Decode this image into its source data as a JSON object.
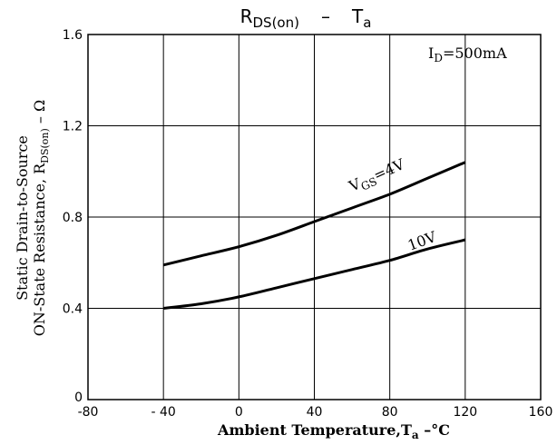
{
  "chart_data": {
    "type": "line",
    "title": {
      "main": "R",
      "sub": "DS(on)",
      "sep": "–",
      "right": "T",
      "right_sub": "a"
    },
    "condition": {
      "prefix": "I",
      "sub": "D",
      "value": "=500mA"
    },
    "xlabel": "Ambient Temperature,T",
    "xlabel_sub": "a",
    "xlabel_unit": " –°C",
    "ylabel_line1": "Static Drain-to-Source",
    "ylabel_line2": "ON-State Resistance, R",
    "ylabel_sub": "DS(on)",
    "ylabel_unit": " – Ω",
    "xlim": [
      -80,
      160
    ],
    "ylim": [
      0,
      1.6
    ],
    "x_ticks": [
      -80,
      -40,
      0,
      40,
      80,
      120,
      160
    ],
    "x_tick_labels": [
      "-80",
      "- 40",
      "0",
      "40",
      "80",
      "120",
      "160"
    ],
    "y_ticks": [
      0,
      0.4,
      0.8,
      1.2,
      1.6
    ],
    "y_tick_labels": [
      "0",
      "0.4",
      "0.8",
      "1.2",
      "1.6"
    ],
    "grid": true,
    "series": [
      {
        "name": "VGS=4V",
        "label_prefix": "V",
        "label_sub": "GS",
        "label_value": "=4V",
        "x": [
          -40,
          -20,
          0,
          20,
          40,
          60,
          80,
          100,
          120
        ],
        "y": [
          0.59,
          0.63,
          0.67,
          0.72,
          0.78,
          0.84,
          0.9,
          0.97,
          1.04
        ]
      },
      {
        "name": "10V",
        "label_prefix": "10V",
        "label_sub": "",
        "label_value": "",
        "x": [
          -40,
          -20,
          0,
          20,
          40,
          60,
          80,
          100,
          120
        ],
        "y": [
          0.4,
          0.42,
          0.45,
          0.49,
          0.53,
          0.57,
          0.61,
          0.66,
          0.7
        ]
      }
    ]
  }
}
